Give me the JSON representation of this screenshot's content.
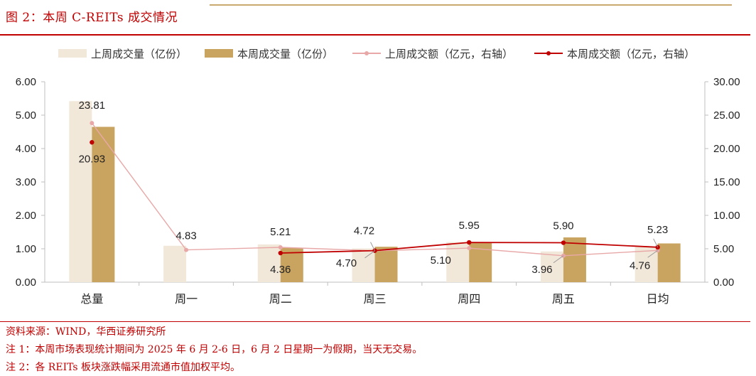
{
  "figure": {
    "title": "图 2：本周 C-REITs 成交情况"
  },
  "legend": {
    "items": [
      {
        "label": "上周成交量（亿份）",
        "kind": "bar",
        "color": "#f2e8da"
      },
      {
        "label": "本周成交量（亿份）",
        "kind": "bar",
        "color": "#c9a460"
      },
      {
        "label": "上周成交额（亿元，右轴）",
        "kind": "line",
        "color": "#e8a8a8"
      },
      {
        "label": "本周成交额（亿元，右轴）",
        "kind": "line",
        "color": "#c00000"
      }
    ]
  },
  "chart_data": {
    "type": "bar",
    "categories": [
      "总量",
      "周一",
      "周二",
      "周三",
      "周四",
      "周五",
      "日均"
    ],
    "left_axis": {
      "ylim": [
        0,
        6
      ],
      "ticks": [
        "0.00",
        "1.00",
        "2.00",
        "3.00",
        "4.00",
        "5.00",
        "6.00"
      ]
    },
    "right_axis": {
      "ylim": [
        0,
        30
      ],
      "ticks": [
        "0.00",
        "5.00",
        "10.00",
        "15.00",
        "20.00",
        "25.00",
        "30.00"
      ]
    },
    "series": [
      {
        "name": "上周成交量（亿份）",
        "type": "bar",
        "axis": "left",
        "color": "#f2e8da",
        "values": [
          5.42,
          1.09,
          1.13,
          1.01,
          1.2,
          0.92,
          1.06
        ]
      },
      {
        "name": "本周成交量（亿份）",
        "type": "bar",
        "axis": "left",
        "color": "#c9a460",
        "values": [
          4.65,
          null,
          1.03,
          1.06,
          1.2,
          1.34,
          1.16
        ]
      },
      {
        "name": "上周成交额（亿元，右轴）",
        "type": "line",
        "axis": "right",
        "color": "#e8a8a8",
        "values": [
          23.81,
          4.83,
          5.21,
          4.7,
          5.1,
          3.96,
          4.76
        ],
        "labels": [
          "23.81",
          "4.83",
          "5.21",
          "4.70",
          "5.10",
          "3.96",
          "4.76"
        ]
      },
      {
        "name": "本周成交额（亿元，右轴）",
        "type": "line",
        "axis": "right",
        "color": "#c00000",
        "values": [
          20.93,
          null,
          4.36,
          4.72,
          5.95,
          5.9,
          5.23
        ],
        "labels": [
          "20.93",
          "",
          "4.36",
          "4.72",
          "5.95",
          "5.90",
          "5.23"
        ]
      }
    ],
    "grid": false,
    "legend_position": "top"
  },
  "notes": {
    "source": "资料来源：WIND，华西证券研究所",
    "note1": "注 1：本周市场表现统计期间为 2025 年 6 月 2-6 日，6 月 2 日星期一为假期，当天无交易。",
    "note2": "注 2：各 REITs 板块涨跌幅采用流通市值加权平均。"
  }
}
